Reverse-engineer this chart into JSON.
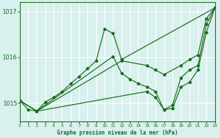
{
  "title": "Graphe pression niveau de la mer (hPa)",
  "bg_color": "#d8f0ee",
  "grid_color": "#ffffff",
  "line_color": "#1a6b1a",
  "xlim": [
    0,
    23
  ],
  "ylim": [
    1014.6,
    1017.2
  ],
  "yticks": [
    1015,
    1016,
    1017
  ],
  "xticks": [
    0,
    1,
    2,
    3,
    4,
    5,
    6,
    7,
    8,
    9,
    10,
    11,
    12,
    13,
    14,
    15,
    16,
    17,
    18,
    19,
    20,
    21,
    22,
    23
  ],
  "series": [
    {
      "x": [
        0,
        1,
        2,
        3,
        4,
        5,
        6,
        7,
        8,
        9,
        10,
        11,
        12,
        23
      ],
      "y": [
        1015.05,
        1014.85,
        1014.82,
        1015.02,
        1015.12,
        1015.25,
        1015.42,
        1015.58,
        1015.75,
        1015.92,
        1016.62,
        1016.52,
        1015.95,
        1017.08
      ]
    },
    {
      "x": [
        0,
        2,
        12,
        15,
        16,
        17,
        19,
        20,
        21,
        22,
        23
      ],
      "y": [
        1015.05,
        1014.82,
        1015.92,
        1015.82,
        1015.72,
        1015.62,
        1015.82,
        1015.95,
        1016.05,
        1016.85,
        1017.08
      ]
    },
    {
      "x": [
        0,
        2,
        11,
        12,
        13,
        14,
        15,
        16,
        17,
        18,
        19,
        20,
        21,
        22,
        23
      ],
      "y": [
        1015.05,
        1014.82,
        1016.02,
        1015.65,
        1015.52,
        1015.42,
        1015.35,
        1015.25,
        1014.85,
        1014.88,
        1015.35,
        1015.45,
        1015.72,
        1016.55,
        1017.08
      ]
    },
    {
      "x": [
        0,
        2,
        15,
        16,
        17,
        18,
        19,
        20,
        21,
        22,
        23
      ],
      "y": [
        1015.05,
        1014.82,
        1015.25,
        1015.12,
        1014.85,
        1014.95,
        1015.55,
        1015.72,
        1015.82,
        1016.72,
        1017.08
      ]
    }
  ]
}
